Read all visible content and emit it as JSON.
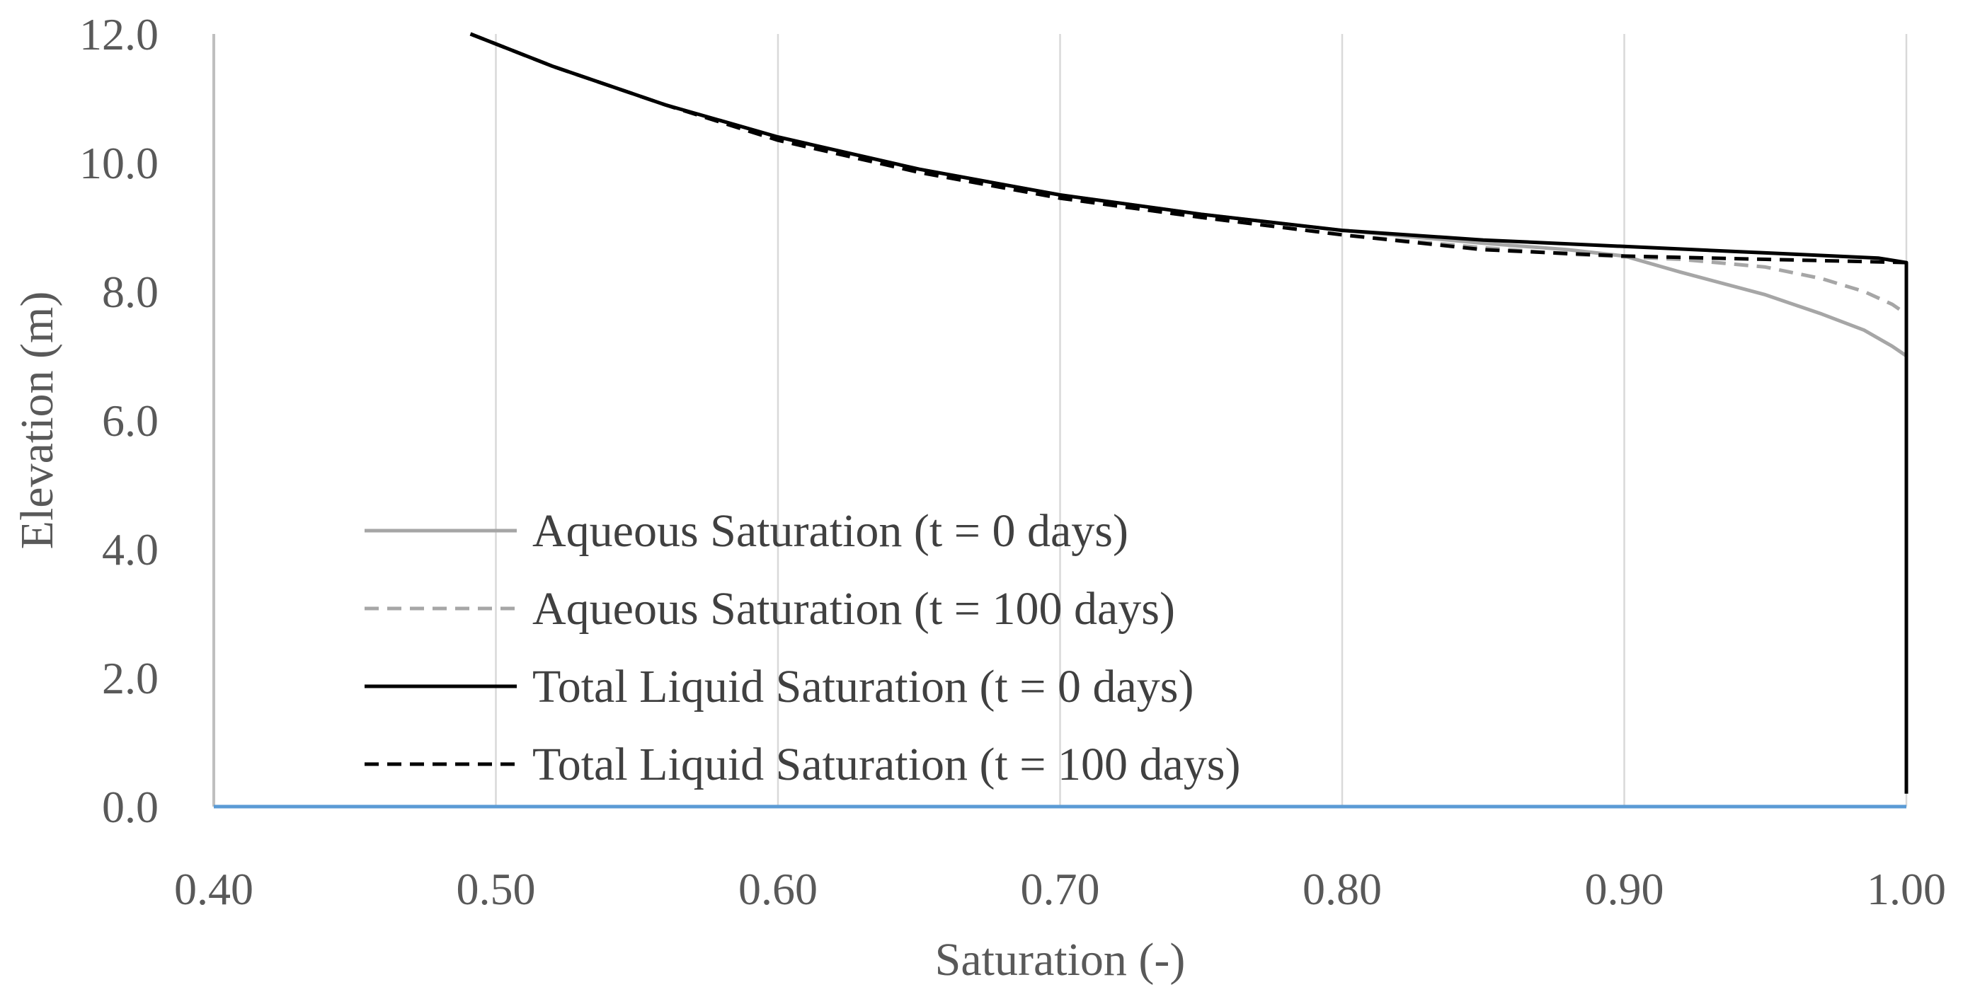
{
  "chart_data": {
    "type": "line",
    "title": "",
    "xlabel": "Saturation (-)",
    "ylabel": "Elevation (m)",
    "xlim": [
      0.4,
      1.0
    ],
    "ylim": [
      0.0,
      12.0
    ],
    "x_ticks": [
      0.4,
      0.5,
      0.6,
      0.7,
      0.8,
      0.9,
      1.0
    ],
    "y_ticks": [
      0.0,
      2.0,
      4.0,
      6.0,
      8.0,
      10.0,
      12.0
    ],
    "x_tick_labels": [
      "0.40",
      "0.50",
      "0.60",
      "0.70",
      "0.80",
      "0.90",
      "1.00"
    ],
    "y_tick_labels": [
      "0.0",
      "2.0",
      "4.0",
      "6.0",
      "8.0",
      "10.0",
      "12.0"
    ],
    "grid": {
      "vertical": true,
      "horizontal": false
    },
    "grid_color": "#d9d9d9",
    "legend_position": "center",
    "baseline": {
      "y": 0.0,
      "color": "#5b9bd5"
    },
    "series": [
      {
        "name": "Aqueous Saturation (t = 0 days)",
        "color": "#a6a6a6",
        "dash": "solid",
        "points": [
          [
            0.491,
            12.0
          ],
          [
            0.52,
            11.5
          ],
          [
            0.56,
            10.9
          ],
          [
            0.6,
            10.4
          ],
          [
            0.65,
            9.9
          ],
          [
            0.7,
            9.5
          ],
          [
            0.75,
            9.2
          ],
          [
            0.8,
            8.95
          ],
          [
            0.85,
            8.75
          ],
          [
            0.88,
            8.65
          ],
          [
            0.9,
            8.55
          ],
          [
            0.92,
            8.3
          ],
          [
            0.95,
            7.95
          ],
          [
            0.97,
            7.65
          ],
          [
            0.985,
            7.4
          ],
          [
            0.995,
            7.15
          ],
          [
            1.0,
            7.0
          ]
        ]
      },
      {
        "name": "Aqueous Saturation (t = 100 days)",
        "color": "#a6a6a6",
        "dash": "dashed",
        "points": [
          [
            0.491,
            12.0
          ],
          [
            0.52,
            11.5
          ],
          [
            0.56,
            10.9
          ],
          [
            0.6,
            10.35
          ],
          [
            0.65,
            9.85
          ],
          [
            0.7,
            9.45
          ],
          [
            0.75,
            9.15
          ],
          [
            0.8,
            8.88
          ],
          [
            0.85,
            8.68
          ],
          [
            0.88,
            8.58
          ],
          [
            0.92,
            8.5
          ],
          [
            0.95,
            8.38
          ],
          [
            0.97,
            8.2
          ],
          [
            0.985,
            8.0
          ],
          [
            0.995,
            7.8
          ],
          [
            1.0,
            7.65
          ]
        ]
      },
      {
        "name": "Total Liquid Saturation (t = 0 days)",
        "color": "#000000",
        "dash": "solid",
        "points": [
          [
            0.491,
            12.0
          ],
          [
            0.52,
            11.5
          ],
          [
            0.56,
            10.9
          ],
          [
            0.6,
            10.4
          ],
          [
            0.65,
            9.9
          ],
          [
            0.7,
            9.5
          ],
          [
            0.75,
            9.2
          ],
          [
            0.8,
            8.95
          ],
          [
            0.85,
            8.8
          ],
          [
            0.9,
            8.7
          ],
          [
            0.95,
            8.6
          ],
          [
            0.99,
            8.52
          ],
          [
            1.0,
            8.45
          ],
          [
            1.0,
            0.2
          ]
        ]
      },
      {
        "name": "Total Liquid Saturation (t = 100 days)",
        "color": "#000000",
        "dash": "dashed",
        "points": [
          [
            0.491,
            12.0
          ],
          [
            0.52,
            11.5
          ],
          [
            0.56,
            10.9
          ],
          [
            0.6,
            10.35
          ],
          [
            0.65,
            9.85
          ],
          [
            0.7,
            9.45
          ],
          [
            0.75,
            9.15
          ],
          [
            0.8,
            8.88
          ],
          [
            0.85,
            8.65
          ],
          [
            0.9,
            8.55
          ],
          [
            0.95,
            8.5
          ],
          [
            1.0,
            8.45
          ]
        ]
      }
    ]
  }
}
